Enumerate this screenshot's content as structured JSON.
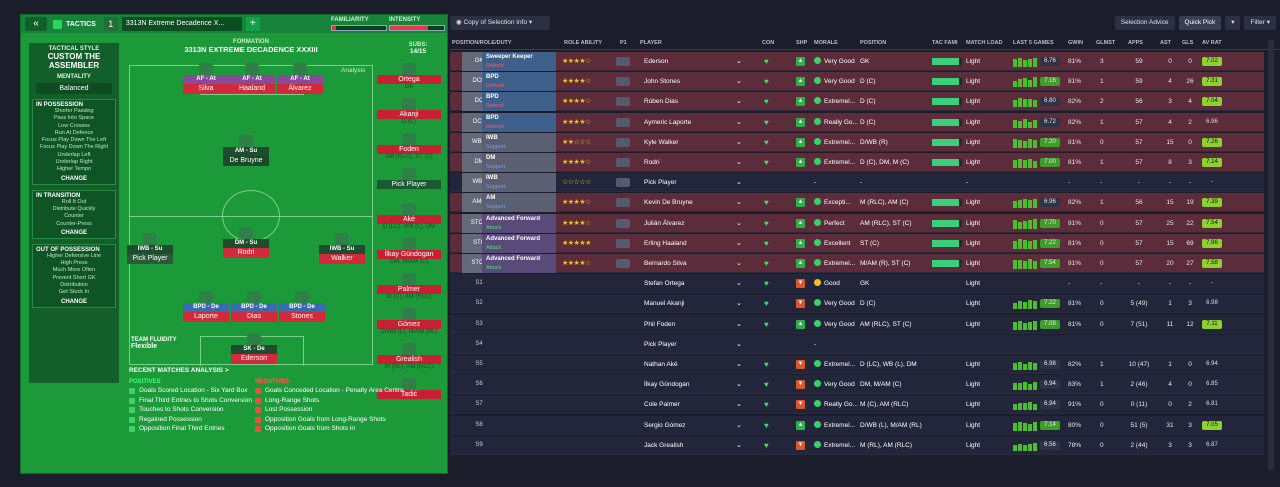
{
  "topbar": {
    "back": "«",
    "tactics_label": "TACTICS",
    "slot": "1",
    "tactic_name": "3313N Extreme Decadence X...",
    "add": "+",
    "familiarity": "FAMILIARITY",
    "intensity": "INTENSITY"
  },
  "sidebar": {
    "style_label": "TACTICAL STYLE",
    "style_value": "CUSTOM THE ASSEMBLER",
    "mentality_label": "MENTALITY",
    "mentality_value": "Balanced",
    "in_possession": {
      "title": "IN POSSESSION",
      "items": [
        "Shorter Passing",
        "Pass Into Space",
        "Low Crosses",
        "Run At Defence",
        "Focus Play Down The Left",
        "Focus Play Down The Right",
        "Underlap Left",
        "Underlap Right",
        "Higher Tempo"
      ],
      "change": "CHANGE"
    },
    "in_transition": {
      "title": "IN TRANSITION",
      "items": [
        "Roll It Out",
        "Distribute Quickly",
        "Counter",
        "Counter-Press"
      ],
      "change": "CHANGE"
    },
    "out_of_possession": {
      "title": "OUT OF POSSESSION",
      "items": [
        "Higher Defensive Line",
        "High Press",
        "Much More Often",
        "Prevent Short GK",
        "Distribution",
        "Get Stuck In"
      ],
      "change": "CHANGE"
    }
  },
  "formation": {
    "label": "FORMATION",
    "name": "3313N EXTREME DECADENCE XXXIII",
    "analysis": "Analysis",
    "subs_label": "SUBS:",
    "subs_count": "14/15",
    "fluidity_label": "TEAM FLUIDITY",
    "fluidity_value": "Flexible"
  },
  "pitch_players": [
    {
      "role": "AF - At",
      "name": "Silva"
    },
    {
      "role": "AF - At",
      "name": "Haaland"
    },
    {
      "role": "AF - At",
      "name": "Álvarez"
    },
    {
      "role": "AM - Su",
      "name": "De Bruyne"
    },
    {
      "role": "IWB - Su",
      "name": "Pick Player"
    },
    {
      "role": "DM - Su",
      "name": "Rodri"
    },
    {
      "role": "IWB - Su",
      "name": "Walker"
    },
    {
      "role": "BPD - De",
      "name": "Laporte"
    },
    {
      "role": "BPD - De",
      "name": "Dias"
    },
    {
      "role": "BPD - De",
      "name": "Stones"
    },
    {
      "role": "SK - De",
      "name": "Ederson"
    }
  ],
  "subs": [
    {
      "name": "Ortega",
      "pos": "GK"
    },
    {
      "name": "Akanji",
      "pos": "D (C)"
    },
    {
      "name": "Foden",
      "pos": "AM (RLC), ST (C)"
    },
    {
      "name": "Pick Player",
      "pos": ""
    },
    {
      "name": "Aké",
      "pos": "D (LC), WB (L), DM"
    },
    {
      "name": "İlkay Gündogan",
      "pos": "DM, M/AM (C)"
    },
    {
      "name": "Palmer",
      "pos": "M (C), AM (RLC)"
    },
    {
      "name": "Gómez",
      "pos": "D/WB (L), M/AM (RL)"
    },
    {
      "name": "Grealish",
      "pos": "M (RL), AM (RLC)"
    },
    {
      "name": "Tadić",
      "pos": ""
    }
  ],
  "recent": {
    "title": "RECENT MATCHES ANALYSIS >",
    "positives_label": "POSITIVES",
    "negatives_label": "NEGATIVES",
    "positives": [
      "Goals Scored Location - Six Yard Box",
      "Final Third Entries to Shots Conversion",
      "Touches to Shots Conversion",
      "Regained Possession",
      "Opposition Final Third Entries"
    ],
    "negatives": [
      "Goals Conceded Location - Penalty Area Centre",
      "Long-Range Shots",
      "Lost Possession",
      "Opposition Goals from Long-Range Shots",
      "Opposition Goals from Shots in"
    ]
  },
  "right_toolbar": {
    "view": "Copy of Selection Info",
    "advice": "Selection Advice",
    "quick_pick": "Quick Pick",
    "filter": "Filter"
  },
  "columns": [
    "POSITION/ROLE/DUTY",
    "ROLE ABILITY",
    "P1",
    "PLAYER",
    "CON",
    "SHP",
    "MORALE",
    "POSITION",
    "TAC FAMI",
    "MATCH LOAD",
    "LAST 5 GAMES",
    "GWIN",
    "GLMST",
    "APPS",
    "AST",
    "GLS",
    "AV RAT"
  ],
  "rows": [
    {
      "pos": "GK",
      "role": "Sweeper Keeper",
      "duty": "Defend",
      "stars": "★★★★☆",
      "player": "Ederson",
      "morale": "Very Good",
      "position": "GK",
      "load": "Light",
      "l5": "6.76",
      "gwin": "81%",
      "glmst": "3",
      "apps": "59",
      "ast": "0",
      "gls": "0",
      "avrat": "7.02",
      "shp": "up",
      "fami": 0.9,
      "bars": [
        8,
        9,
        7,
        8,
        9
      ]
    },
    {
      "pos": "DCR",
      "role": "BPD",
      "duty": "Defend",
      "stars": "★★★★☆",
      "player": "John Stones",
      "morale": "Very Good",
      "position": "D (C)",
      "load": "Light",
      "l5": "7.16",
      "gwin": "81%",
      "glmst": "1",
      "apps": "59",
      "ast": "4",
      "gls": "26",
      "avrat": "7.31",
      "shp": "up",
      "fami": 0.9,
      "bars": [
        6,
        8,
        9,
        7,
        10
      ]
    },
    {
      "pos": "DC",
      "role": "BPD",
      "duty": "Defend",
      "stars": "★★★★☆",
      "player": "Rúben Dias",
      "morale": "Extremel...",
      "position": "D (C)",
      "load": "Light",
      "l5": "6.80",
      "gwin": "82%",
      "glmst": "2",
      "apps": "56",
      "ast": "3",
      "gls": "4",
      "avrat": "7.04",
      "shp": "up",
      "fami": 0.9,
      "bars": [
        7,
        9,
        8,
        8,
        7
      ]
    },
    {
      "pos": "DCL",
      "role": "BPD",
      "duty": "Defend",
      "stars": "★★★★☆",
      "player": "Aymeric Laporte",
      "morale": "Really Go...",
      "position": "D (C)",
      "load": "Light",
      "l5": "6.72",
      "gwin": "82%",
      "glmst": "1",
      "apps": "57",
      "ast": "4",
      "gls": "2",
      "avrat": "6.96",
      "shp": "up",
      "fami": 0.9,
      "bars": [
        8,
        7,
        9,
        6,
        8
      ]
    },
    {
      "pos": "WBR",
      "role": "IWB",
      "duty": "Support",
      "stars": "★★☆☆☆",
      "player": "Kyle Walker",
      "morale": "Extremel...",
      "position": "D/WB (R)",
      "load": "Light",
      "l5": "7.20",
      "gwin": "81%",
      "glmst": "0",
      "apps": "57",
      "ast": "15",
      "gls": "0",
      "avrat": "7.26",
      "shp": "up",
      "fami": 0.9,
      "bars": [
        9,
        8,
        7,
        9,
        8
      ]
    },
    {
      "pos": "DM",
      "role": "DM",
      "duty": "Support",
      "stars": "★★★★☆",
      "player": "Rodri",
      "morale": "Extremel...",
      "position": "D (C), DM, M (C)",
      "load": "Light",
      "l5": "7.00",
      "gwin": "81%",
      "glmst": "1",
      "apps": "57",
      "ast": "8",
      "gls": "3",
      "avrat": "7.14",
      "shp": "up",
      "fami": 0.9,
      "bars": [
        8,
        9,
        8,
        9,
        7
      ]
    },
    {
      "pos": "WBL",
      "role": "IWB",
      "duty": "Support",
      "stars": "☆☆☆☆☆",
      "player": "Pick Player",
      "morale": "-",
      "position": "-",
      "load": "-",
      "l5": "",
      "gwin": "-",
      "glmst": "-",
      "apps": "-",
      "ast": "-",
      "gls": "-",
      "avrat": "-",
      "shp": "",
      "fami": 0,
      "bars": []
    },
    {
      "pos": "AMC",
      "role": "AM",
      "duty": "Support",
      "stars": "★★★★☆",
      "player": "Kevin De Bruyne",
      "morale": "Excepti...",
      "position": "M (RLC), AM (C)",
      "load": "Light",
      "l5": "6.96",
      "gwin": "82%",
      "glmst": "1",
      "apps": "56",
      "ast": "15",
      "gls": "19",
      "avrat": "7.39",
      "shp": "up",
      "fami": 0.9,
      "bars": [
        7,
        8,
        9,
        8,
        9
      ]
    },
    {
      "pos": "STCR",
      "role": "Advanced Forward",
      "duty": "Attack",
      "stars": "★★★★☆",
      "player": "Julián Álvarez",
      "morale": "Perfect",
      "position": "AM (RLC), ST (C)",
      "load": "Light",
      "l5": "7.70",
      "gwin": "81%",
      "glmst": "0",
      "apps": "57",
      "ast": "25",
      "gls": "22",
      "avrat": "7.54",
      "shp": "up",
      "fami": 0.9,
      "bars": [
        9,
        7,
        8,
        9,
        10
      ]
    },
    {
      "pos": "STC",
      "role": "Advanced Forward",
      "duty": "Attack",
      "stars": "★★★★★",
      "player": "Erling Haaland",
      "morale": "Excellent",
      "position": "ST (C)",
      "load": "Light",
      "l5": "7.22",
      "gwin": "81%",
      "glmst": "0",
      "apps": "57",
      "ast": "15",
      "gls": "69",
      "avrat": "7.96",
      "shp": "up",
      "fami": 0.9,
      "bars": [
        8,
        10,
        9,
        8,
        9
      ]
    },
    {
      "pos": "STCL",
      "role": "Advanced Forward",
      "duty": "Attack",
      "stars": "★★★★☆",
      "player": "Bernardo Silva",
      "morale": "Extremel...",
      "position": "M/AM (R), ST (C)",
      "load": "Light",
      "l5": "7.54",
      "gwin": "81%",
      "glmst": "0",
      "apps": "57",
      "ast": "20",
      "gls": "27",
      "avrat": "7.58",
      "shp": "up",
      "fami": 0.9,
      "bars": [
        9,
        9,
        8,
        10,
        8
      ]
    },
    {
      "pos": "S1",
      "role": "",
      "duty": "",
      "stars": "",
      "player": "Stefan Ortega",
      "morale": "Good",
      "position": "GK",
      "load": "Light",
      "l5": "",
      "gwin": "-",
      "glmst": "-",
      "apps": "-",
      "ast": "-",
      "gls": "-",
      "avrat": "-",
      "shp": "down",
      "fami": 0,
      "bars": []
    },
    {
      "pos": "S2",
      "role": "",
      "duty": "",
      "stars": "",
      "player": "Manuel Akanji",
      "morale": "Very Good",
      "position": "D (C)",
      "load": "Light",
      "l5": "7.22",
      "gwin": "81%",
      "glmst": "0",
      "apps": "5 (49)",
      "ast": "1",
      "gls": "3",
      "avrat": "6.98",
      "shp": "down",
      "fami": 0,
      "bars": [
        6,
        8,
        7,
        9,
        8
      ]
    },
    {
      "pos": "S3",
      "role": "",
      "duty": "",
      "stars": "",
      "player": "Phil Foden",
      "morale": "Very Good",
      "position": "AM (RLC), ST (C)",
      "load": "Light",
      "l5": "7.08",
      "gwin": "81%",
      "glmst": "0",
      "apps": "7 (51)",
      "ast": "11",
      "gls": "12",
      "avrat": "7.11",
      "shp": "up",
      "fami": 0,
      "bars": [
        8,
        9,
        7,
        8,
        9
      ]
    },
    {
      "pos": "S4",
      "role": "",
      "duty": "",
      "stars": "",
      "player": "Pick Player",
      "morale": "-",
      "position": "",
      "load": "",
      "l5": "",
      "gwin": "",
      "glmst": "",
      "apps": "",
      "ast": "",
      "gls": "",
      "avrat": "",
      "shp": "",
      "fami": 0,
      "bars": []
    },
    {
      "pos": "S5",
      "role": "",
      "duty": "",
      "stars": "",
      "player": "Nathan Aké",
      "morale": "Extremel...",
      "position": "D (LC), WB (L), DM",
      "load": "Light",
      "l5": "6.98",
      "gwin": "82%",
      "glmst": "1",
      "apps": "10 (47)",
      "ast": "1",
      "gls": "0",
      "avrat": "6.94",
      "shp": "down",
      "fami": 0,
      "bars": [
        7,
        8,
        6,
        8,
        7
      ]
    },
    {
      "pos": "S6",
      "role": "",
      "duty": "",
      "stars": "",
      "player": "İlkay Gündogan",
      "morale": "Very Good",
      "position": "DM, M/AM (C)",
      "load": "Light",
      "l5": "6.94",
      "gwin": "83%",
      "glmst": "1",
      "apps": "2 (46)",
      "ast": "4",
      "gls": "0",
      "avrat": "6.85",
      "shp": "down",
      "fami": 0,
      "bars": [
        7,
        7,
        8,
        6,
        8
      ]
    },
    {
      "pos": "S7",
      "role": "",
      "duty": "",
      "stars": "",
      "player": "Cole Palmer",
      "morale": "Really Go...",
      "position": "M (C), AM (RLC)",
      "load": "Light",
      "l5": "6.94",
      "gwin": "91%",
      "glmst": "0",
      "apps": "0 (11)",
      "ast": "0",
      "gls": "2",
      "avrat": "6.81",
      "shp": "down",
      "fami": 0,
      "bars": [
        6,
        7,
        7,
        8,
        6
      ]
    },
    {
      "pos": "S8",
      "role": "",
      "duty": "",
      "stars": "",
      "player": "Sergio Gómez",
      "morale": "Extremel...",
      "position": "D/WB (L), M/AM (RL)",
      "load": "Light",
      "l5": "7.14",
      "gwin": "80%",
      "glmst": "0",
      "apps": "51 (5)",
      "ast": "31",
      "gls": "3",
      "avrat": "7.05",
      "shp": "up",
      "fami": 0,
      "bars": [
        8,
        9,
        8,
        7,
        9
      ]
    },
    {
      "pos": "S9",
      "role": "",
      "duty": "",
      "stars": "",
      "player": "Jack Grealish",
      "morale": "Extremel...",
      "position": "M (RL), AM (RLC)",
      "load": "Light",
      "l5": "6.56",
      "gwin": "78%",
      "glmst": "0",
      "apps": "2 (44)",
      "ast": "3",
      "gls": "3",
      "avrat": "6.87",
      "shp": "down",
      "fami": 0,
      "bars": [
        6,
        7,
        6,
        7,
        8
      ]
    }
  ]
}
